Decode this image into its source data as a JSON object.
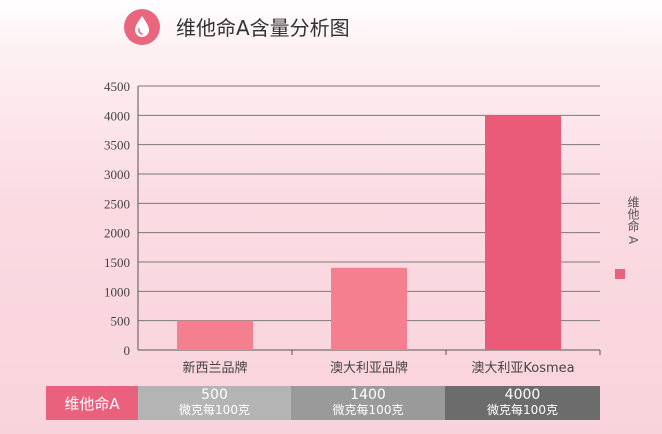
{
  "title": "维他命A含量分析图",
  "icons": {
    "header": "water-drop-icon"
  },
  "colors": {
    "accent": "#e9617d",
    "bar_low": "#f4808f",
    "bar_high": "#ea5a79"
  },
  "legend": {
    "label": "维他命 A",
    "position": "right"
  },
  "chart_data": {
    "type": "bar",
    "categories": [
      "新西兰品牌",
      "澳大利亚品牌",
      "澳大利亚Kosmea"
    ],
    "series": [
      {
        "name": "维他命 A",
        "values": [
          500,
          1400,
          4000
        ]
      }
    ],
    "ylim": [
      0,
      4500
    ],
    "yticks": [
      0,
      500,
      1000,
      1500,
      2000,
      2500,
      3000,
      3500,
      4000,
      4500
    ],
    "grid": true
  },
  "table": {
    "row_label": "维他命A",
    "cells": [
      {
        "value": "500",
        "unit": "微克每100克"
      },
      {
        "value": "1400",
        "unit": "微克每100克"
      },
      {
        "value": "4000",
        "unit": "微克每100克"
      }
    ]
  }
}
